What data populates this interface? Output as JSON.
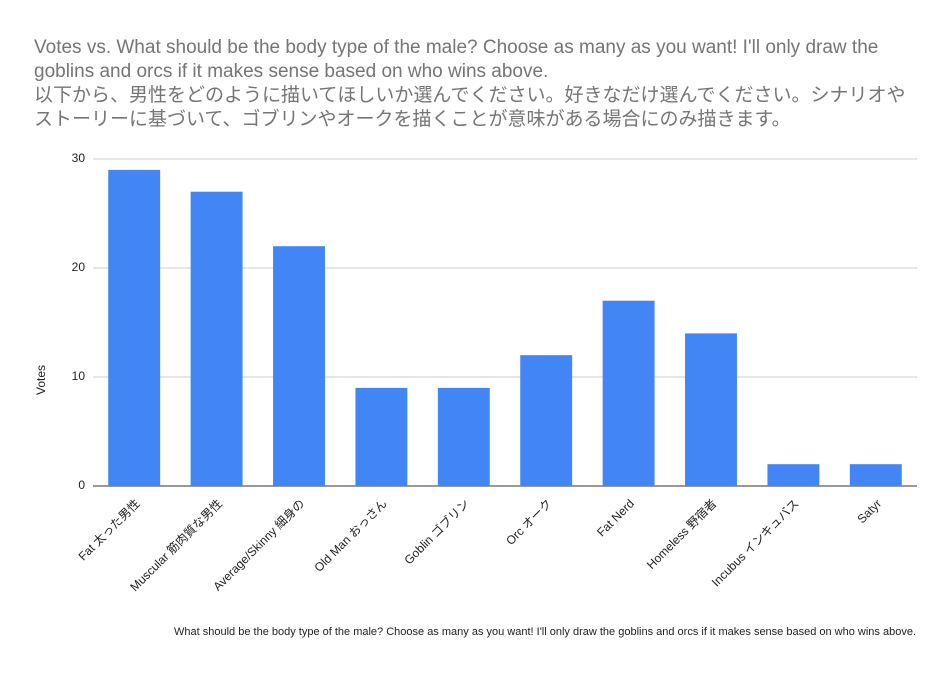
{
  "chart_data": {
    "type": "bar",
    "title": "Votes vs. What should be the body type of the male? Choose as many as you want! I'll only draw the goblins and orcs if it makes sense based on who wins above.\n以下から、男性をどのように描いてほしいか選んでください。好きなだけ選んでください。シナリオやストーリーに基づいて、ゴブリンやオークを描くことが意味がある場合にのみ描きます。",
    "x_label": "What should be the body type of the male? Choose as many as you want! I'll only draw the goblins and orcs if it makes sense based on who wins above.",
    "y_label": "Votes",
    "categories": [
      "Fat 太った男性",
      "Muscular 筋肉質な男性",
      "Average/Skinny 細身の",
      "Old Man おっさん",
      "Goblin ゴブリン",
      "Orc オーク",
      "Fat Nerd",
      "Homeless 野宿者",
      "Incubus インキュバス",
      "Satyr"
    ],
    "values": [
      29,
      27,
      22,
      9,
      9,
      12,
      17,
      14,
      2,
      2
    ],
    "color": "#4285f4",
    "ylim": [
      0,
      30
    ],
    "yticks": [
      0,
      10,
      20,
      30
    ],
    "grid": true
  }
}
